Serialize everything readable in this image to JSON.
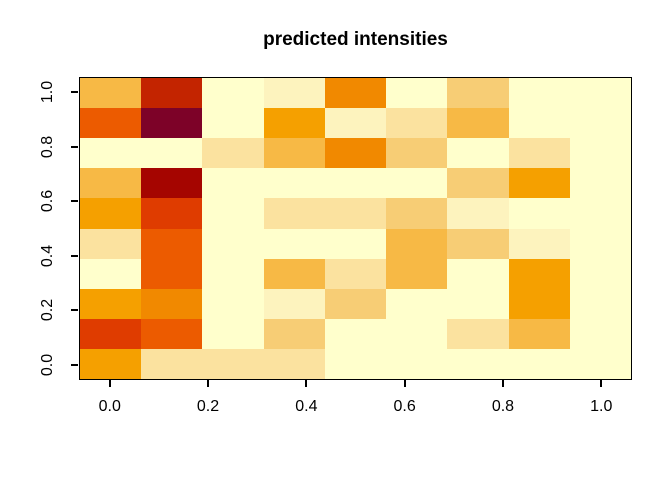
{
  "title": "predicted intensities",
  "x_axis": {
    "tick_labels": [
      "0.0",
      "0.2",
      "0.4",
      "0.6",
      "0.8",
      "1.0"
    ]
  },
  "y_axis": {
    "tick_labels": [
      "0.0",
      "0.2",
      "0.4",
      "0.6",
      "0.8",
      "1.0"
    ]
  },
  "colors": {
    "background": "#FFFFFF",
    "box_border": "#000000",
    "tick": "#000000",
    "text": "#000000"
  },
  "chart_data": {
    "type": "heatmap",
    "title": "predicted intensities",
    "xlabel": "",
    "ylabel": "",
    "n_cols": 9,
    "n_rows": 10,
    "x_tick_values": [
      0.0,
      0.2,
      0.4,
      0.6,
      0.8,
      1.0
    ],
    "y_tick_values": [
      0.0,
      0.2,
      0.4,
      0.6,
      0.8,
      1.0
    ],
    "x_range": [
      0.0,
      1.0
    ],
    "y_range": [
      0.0,
      1.0
    ],
    "grid": "off",
    "legend": "none",
    "palette": {
      "pale": "#FFFFCC",
      "cream": "#FDF3BE",
      "creamtan": "#FBE29F",
      "tan": "#F7CD75",
      "ltorange": "#F7B945",
      "orange": "#F5A000",
      "dkorange": "#F18900",
      "orangered": "#EC5B00",
      "red": "#DF3C00",
      "brick": "#C32400",
      "darkred": "#A50500",
      "maroon": "#7D0228"
    },
    "orientation_note": "rows listed top (y=1.0) to bottom (y=0.0); columns left (x=0.0) to right (x=1.0)",
    "rows_top_to_bottom": [
      [
        "ltorange",
        "brick",
        "pale",
        "cream",
        "dkorange",
        "pale",
        "tan",
        "pale",
        "pale"
      ],
      [
        "orangered",
        "maroon",
        "pale",
        "orange",
        "cream",
        "creamtan",
        "ltorange",
        "pale",
        "pale"
      ],
      [
        "pale",
        "pale",
        "creamtan",
        "ltorange",
        "dkorange",
        "tan",
        "pale",
        "creamtan",
        "pale"
      ],
      [
        "ltorange",
        "darkred",
        "pale",
        "pale",
        "pale",
        "pale",
        "tan",
        "orange",
        "pale"
      ],
      [
        "orange",
        "red",
        "pale",
        "creamtan",
        "creamtan",
        "tan",
        "cream",
        "pale",
        "pale"
      ],
      [
        "creamtan",
        "orangered",
        "pale",
        "pale",
        "pale",
        "ltorange",
        "tan",
        "cream",
        "pale"
      ],
      [
        "pale",
        "orangered",
        "pale",
        "ltorange",
        "creamtan",
        "ltorange",
        "pale",
        "orange",
        "pale"
      ],
      [
        "orange",
        "dkorange",
        "pale",
        "cream",
        "tan",
        "pale",
        "pale",
        "orange",
        "pale"
      ],
      [
        "red",
        "orangered",
        "pale",
        "tan",
        "pale",
        "pale",
        "creamtan",
        "ltorange",
        "pale"
      ],
      [
        "orange",
        "creamtan",
        "creamtan",
        "creamtan",
        "pale",
        "pale",
        "pale",
        "pale",
        "pale"
      ]
    ]
  }
}
